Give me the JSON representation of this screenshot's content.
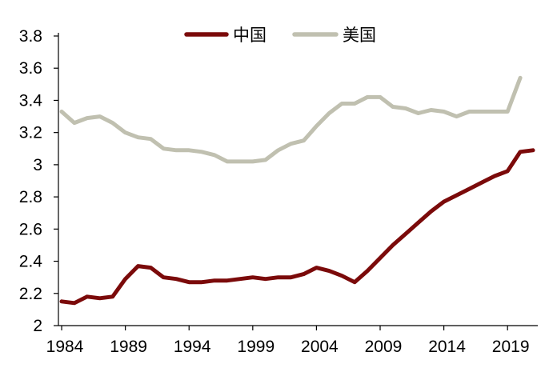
{
  "chart_data": {
    "type": "line",
    "x": [
      1984,
      1985,
      1986,
      1987,
      1988,
      1989,
      1990,
      1991,
      1992,
      1993,
      1994,
      1995,
      1996,
      1997,
      1998,
      1999,
      2000,
      2001,
      2002,
      2003,
      2004,
      2005,
      2006,
      2007,
      2008,
      2009,
      2010,
      2011,
      2012,
      2013,
      2014,
      2015,
      2016,
      2017,
      2018,
      2019,
      2020,
      2021
    ],
    "series": [
      {
        "name": "中国",
        "color": "#7b0a0a",
        "values": [
          2.15,
          2.14,
          2.18,
          2.17,
          2.18,
          2.29,
          2.37,
          2.36,
          2.3,
          2.29,
          2.27,
          2.27,
          2.28,
          2.28,
          2.29,
          2.3,
          2.29,
          2.3,
          2.3,
          2.32,
          2.36,
          2.34,
          2.31,
          2.27,
          2.34,
          2.42,
          2.5,
          2.57,
          2.64,
          2.71,
          2.77,
          2.81,
          2.85,
          2.89,
          2.93,
          2.96,
          3.08,
          3.09
        ]
      },
      {
        "name": "美国",
        "color": "#c0c0b0",
        "values": [
          3.33,
          3.26,
          3.29,
          3.3,
          3.26,
          3.2,
          3.17,
          3.16,
          3.1,
          3.09,
          3.09,
          3.08,
          3.06,
          3.02,
          3.02,
          3.02,
          3.03,
          3.09,
          3.13,
          3.15,
          3.24,
          3.32,
          3.38,
          3.38,
          3.42,
          3.42,
          3.36,
          3.35,
          3.32,
          3.34,
          3.33,
          3.3,
          3.33,
          3.33,
          3.33,
          3.33,
          3.54,
          null
        ]
      }
    ],
    "xticks": [
      "1984",
      "1989",
      "1994",
      "1999",
      "2004",
      "2009",
      "2014",
      "2019"
    ],
    "yticks": [
      "2",
      "2.2",
      "2.4",
      "2.6",
      "2.8",
      "3",
      "3.2",
      "3.4",
      "3.6",
      "3.8"
    ],
    "ylim": [
      2,
      3.8
    ],
    "xlim": [
      1984,
      2021
    ],
    "grid": false,
    "legend": "top-center",
    "title": "",
    "xlabel": "",
    "ylabel": ""
  }
}
